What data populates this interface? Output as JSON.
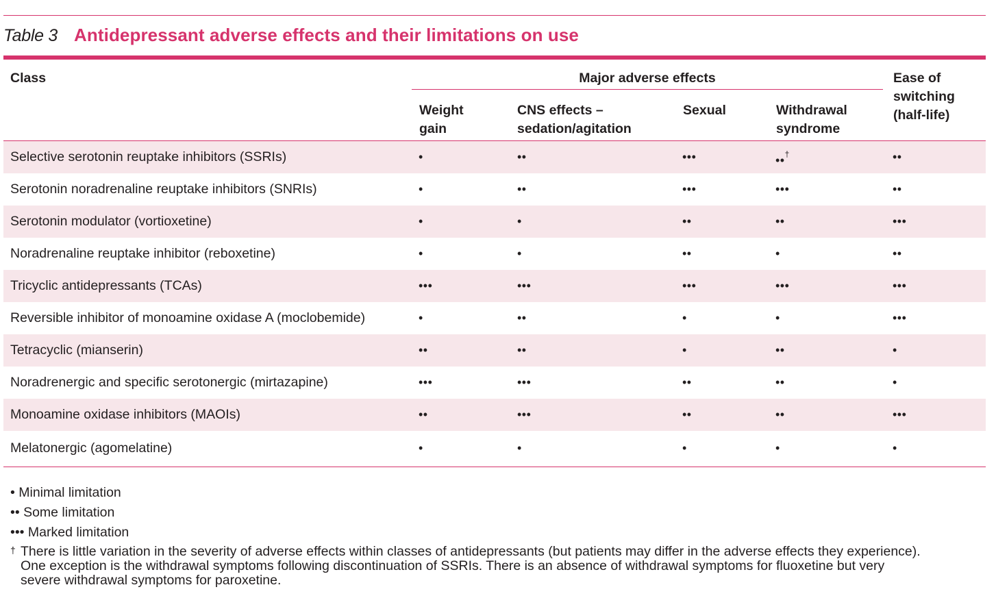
{
  "table_label": "Table 3",
  "table_title": "Antidepressant adverse effects and their limitations on use",
  "headers": {
    "class": "Class",
    "group": "Major adverse effects",
    "weight_gain": [
      "Weight",
      "gain"
    ],
    "cns": [
      "CNS effects –",
      "sedation/agitation"
    ],
    "sexual": "Sexual",
    "withdrawal": [
      "Withdrawal",
      "syndrome"
    ],
    "switching": [
      "Ease of",
      "switching",
      "(half-life)"
    ]
  },
  "rows": [
    {
      "class": "Selective serotonin reuptake inhibitors (SSRIs)",
      "weight": "•",
      "cns": "••",
      "sexual": "•••",
      "withdrawal": "••",
      "withdrawal_mark": "†",
      "switching": "••"
    },
    {
      "class": "Serotonin noradrenaline reuptake inhibitors (SNRIs)",
      "weight": "•",
      "cns": "••",
      "sexual": "•••",
      "withdrawal": "•••",
      "withdrawal_mark": "",
      "switching": "••"
    },
    {
      "class": "Serotonin modulator (vortioxetine)",
      "weight": "•",
      "cns": "•",
      "sexual": "••",
      "withdrawal": "••",
      "withdrawal_mark": "",
      "switching": "•••"
    },
    {
      "class": "Noradrenaline reuptake inhibitor (reboxetine)",
      "weight": "•",
      "cns": "•",
      "sexual": "••",
      "withdrawal": "•",
      "withdrawal_mark": "",
      "switching": "••"
    },
    {
      "class": "Tricyclic antidepressants (TCAs)",
      "weight": "•••",
      "cns": "•••",
      "sexual": "•••",
      "withdrawal": "•••",
      "withdrawal_mark": "",
      "switching": "•••"
    },
    {
      "class": "Reversible inhibitor of monoamine oxidase A (moclobemide)",
      "weight": "•",
      "cns": "••",
      "sexual": "•",
      "withdrawal": "•",
      "withdrawal_mark": "",
      "switching": "•••"
    },
    {
      "class": "Tetracyclic (mianserin)",
      "weight": "••",
      "cns": "••",
      "sexual": "•",
      "withdrawal": "••",
      "withdrawal_mark": "",
      "switching": "•"
    },
    {
      "class": "Noradrenergic and specific serotonergic (mirtazapine)",
      "weight": "•••",
      "cns": "•••",
      "sexual": "••",
      "withdrawal": "••",
      "withdrawal_mark": "",
      "switching": "•"
    },
    {
      "class": "Monoamine oxidase inhibitors (MAOIs)",
      "weight": "••",
      "cns": "•••",
      "sexual": "••",
      "withdrawal": "••",
      "withdrawal_mark": "",
      "switching": "•••"
    },
    {
      "class": "Melatonergic (agomelatine)",
      "weight": "•",
      "cns": "•",
      "sexual": "•",
      "withdrawal": "•",
      "withdrawal_mark": "",
      "switching": "•"
    }
  ],
  "legend": [
    "• Minimal limitation",
    "•• Some limitation",
    "••• Marked limitation"
  ],
  "footnote": {
    "mark": "†",
    "text": "There is little variation in the severity of adverse effects within classes of antidepressants (but patients may differ in the adverse effects they experience). One exception is the withdrawal symptoms following discontinuation of SSRIs. There is an absence of withdrawal symptoms for fluoxetine but very severe withdrawal symptoms for paroxetine."
  },
  "colors": {
    "accent": "#d6336c",
    "row_shade": "#f7e6ea",
    "text": "#231f20"
  }
}
